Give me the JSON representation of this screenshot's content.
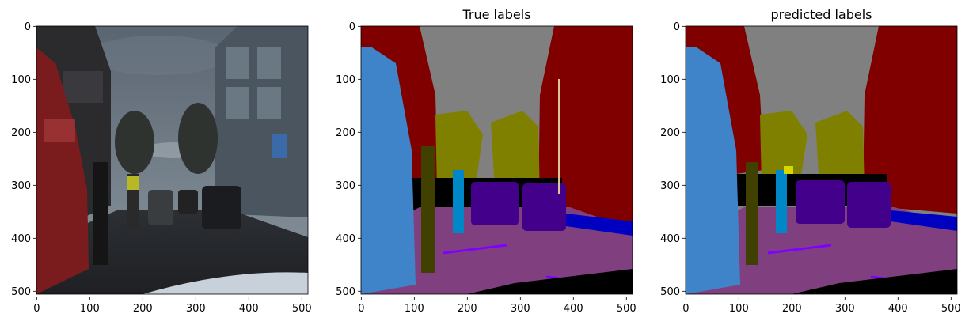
{
  "figure": {
    "panels": [
      {
        "title": "",
        "content": "street-scene-photo",
        "xticks": [
          "0",
          "100",
          "200",
          "300",
          "400",
          "500"
        ],
        "yticks": [
          "0",
          "100",
          "200",
          "300",
          "400",
          "500"
        ]
      },
      {
        "title": "True labels",
        "content": "segmentation-ground-truth",
        "xticks": [
          "0",
          "100",
          "200",
          "300",
          "400",
          "500"
        ],
        "yticks": [
          "0",
          "100",
          "200",
          "300",
          "400",
          "500"
        ]
      },
      {
        "title": "predicted labels",
        "content": "segmentation-prediction",
        "xticks": [
          "0",
          "100",
          "200",
          "300",
          "400",
          "500"
        ],
        "yticks": [
          "0",
          "100",
          "200",
          "300",
          "400",
          "500"
        ]
      }
    ],
    "colors": {
      "sky": "#808080",
      "building": "#800000",
      "sidewalk": "#3f83c8",
      "road": "#804080",
      "vehicle": "#43008a",
      "tree": "#808000",
      "pedestrian": "#404000",
      "cyclist": "#0087c8",
      "void": "#000000",
      "lane-marking": "#8000ff",
      "blue-strip": "#0000c0"
    }
  }
}
